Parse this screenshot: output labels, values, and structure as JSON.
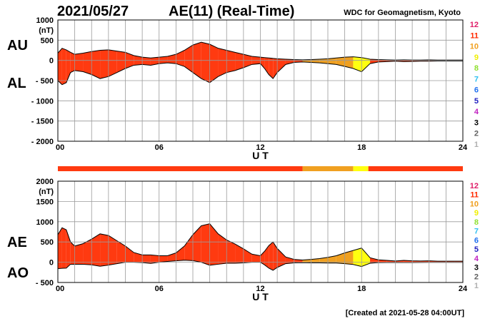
{
  "header": {
    "date": "2021/05/27",
    "title": "AE(11) (Real-Time)",
    "source": "WDC for Geomagnetism, Kyoto"
  },
  "footer": {
    "created": "[Created at 2021-05-28 04:00UT]"
  },
  "colors": {
    "plot_fill": "#ff3a10",
    "fill_medium": "#f0a020",
    "fill_high": "#ffff10",
    "grid": "#9a9a9a"
  },
  "station_legend": {
    "items": [
      {
        "label": "12",
        "color": "#e0206a"
      },
      {
        "label": "11",
        "color": "#ff2a00"
      },
      {
        "label": "10",
        "color": "#f0a020"
      },
      {
        "label": "9",
        "color": "#f0f000"
      },
      {
        "label": "8",
        "color": "#90e030"
      },
      {
        "label": "7",
        "color": "#30c0f0"
      },
      {
        "label": "6",
        "color": "#2070f0"
      },
      {
        "label": "5",
        "color": "#2020c0"
      },
      {
        "label": "4",
        "color": "#c020c0"
      },
      {
        "label": "3",
        "color": "#000000"
      },
      {
        "label": "2",
        "color": "#606060"
      },
      {
        "label": "1",
        "color": "#b0b0b0"
      }
    ]
  },
  "quality_bar": {
    "segments": [
      {
        "from": 0,
        "to": 14.5,
        "stations": "11"
      },
      {
        "from": 14.5,
        "to": 17.5,
        "stations": "10"
      },
      {
        "from": 17.5,
        "to": 18.4,
        "stations": "9"
      },
      {
        "from": 18.4,
        "to": 24,
        "stations": "11"
      }
    ]
  },
  "chart_data": [
    {
      "type": "area",
      "unit_label": "(nT)",
      "xlabel": "U T",
      "xlim": [
        0,
        24
      ],
      "ylim": [
        -2000,
        1000
      ],
      "x_ticks": [
        "00",
        "06",
        "12",
        "18",
        "24"
      ],
      "y_ticks": [
        "1000",
        "500",
        "0",
        "- 500",
        "- 1000",
        "- 1500",
        "- 2000"
      ],
      "series_labels": [
        "AU",
        "AL"
      ],
      "x": [
        0,
        0.25,
        0.5,
        0.75,
        1,
        1.5,
        2,
        2.5,
        3,
        3.5,
        4,
        4.5,
        5,
        5.5,
        6,
        6.5,
        7,
        7.5,
        8,
        8.5,
        9,
        9.5,
        10,
        10.5,
        11,
        11.5,
        12,
        12.25,
        12.5,
        12.75,
        13,
        13.5,
        14,
        14.5,
        15,
        15.5,
        16,
        16.5,
        17,
        17.5,
        18,
        18.5,
        19,
        19.5,
        20,
        20.5,
        21,
        21.5,
        22,
        22.5,
        23,
        23.5,
        24
      ],
      "upper": [
        180,
        300,
        260,
        200,
        150,
        180,
        220,
        250,
        260,
        230,
        200,
        120,
        80,
        60,
        80,
        100,
        150,
        250,
        380,
        450,
        400,
        300,
        250,
        200,
        150,
        100,
        80,
        70,
        60,
        50,
        40,
        30,
        20,
        15,
        20,
        30,
        40,
        60,
        80,
        90,
        70,
        30,
        20,
        15,
        10,
        15,
        10,
        10,
        15,
        10,
        10,
        10,
        10
      ],
      "lower": [
        -500,
        -600,
        -550,
        -300,
        -250,
        -280,
        -350,
        -450,
        -400,
        -300,
        -200,
        -120,
        -100,
        -120,
        -80,
        -60,
        -80,
        -150,
        -300,
        -450,
        -550,
        -400,
        -300,
        -250,
        -180,
        -100,
        -80,
        -200,
        -350,
        -450,
        -300,
        -100,
        -50,
        -40,
        -50,
        -60,
        -80,
        -100,
        -150,
        -200,
        -280,
        -80,
        -40,
        -30,
        -20,
        -30,
        -25,
        -20,
        -20,
        -15,
        -15,
        -15,
        -15
      ]
    },
    {
      "type": "area",
      "unit_label": "(nT)",
      "xlabel": "U T",
      "xlim": [
        0,
        24
      ],
      "ylim": [
        -500,
        2000
      ],
      "x_ticks": [
        "00",
        "06",
        "12",
        "18",
        "24"
      ],
      "y_ticks": [
        "2000",
        "1500",
        "1000",
        "500",
        "0",
        "- 500"
      ],
      "series_labels": [
        "AE",
        "AO"
      ],
      "x": [
        0,
        0.25,
        0.5,
        0.75,
        1,
        1.5,
        2,
        2.5,
        3,
        3.5,
        4,
        4.5,
        5,
        5.5,
        6,
        6.5,
        7,
        7.5,
        8,
        8.5,
        9,
        9.5,
        10,
        10.5,
        11,
        11.5,
        12,
        12.25,
        12.5,
        12.75,
        13,
        13.5,
        14,
        14.5,
        15,
        15.5,
        16,
        16.5,
        17,
        17.5,
        18,
        18.5,
        19,
        19.5,
        20,
        20.5,
        21,
        21.5,
        22,
        22.5,
        23,
        23.5,
        24
      ],
      "upper": [
        680,
        850,
        800,
        500,
        400,
        460,
        570,
        700,
        660,
        530,
        400,
        240,
        180,
        180,
        160,
        160,
        230,
        400,
        680,
        900,
        950,
        700,
        550,
        450,
        330,
        200,
        160,
        270,
        410,
        500,
        340,
        130,
        70,
        55,
        70,
        90,
        120,
        160,
        230,
        290,
        350,
        110,
        60,
        45,
        30,
        45,
        35,
        30,
        35,
        25,
        25,
        25,
        25
      ],
      "lower": [
        -160,
        -150,
        -145,
        -50,
        -50,
        -50,
        -65,
        -100,
        -70,
        -35,
        0,
        0,
        -10,
        -30,
        0,
        20,
        35,
        50,
        40,
        0,
        -75,
        -50,
        -25,
        -25,
        -15,
        0,
        0,
        -65,
        -145,
        -200,
        -130,
        -35,
        -15,
        -12,
        -15,
        -15,
        -20,
        -20,
        -35,
        -55,
        -105,
        -25,
        -10,
        -8,
        -5,
        -8,
        -8,
        -5,
        -3,
        -3,
        -3,
        -3,
        -3
      ]
    }
  ]
}
